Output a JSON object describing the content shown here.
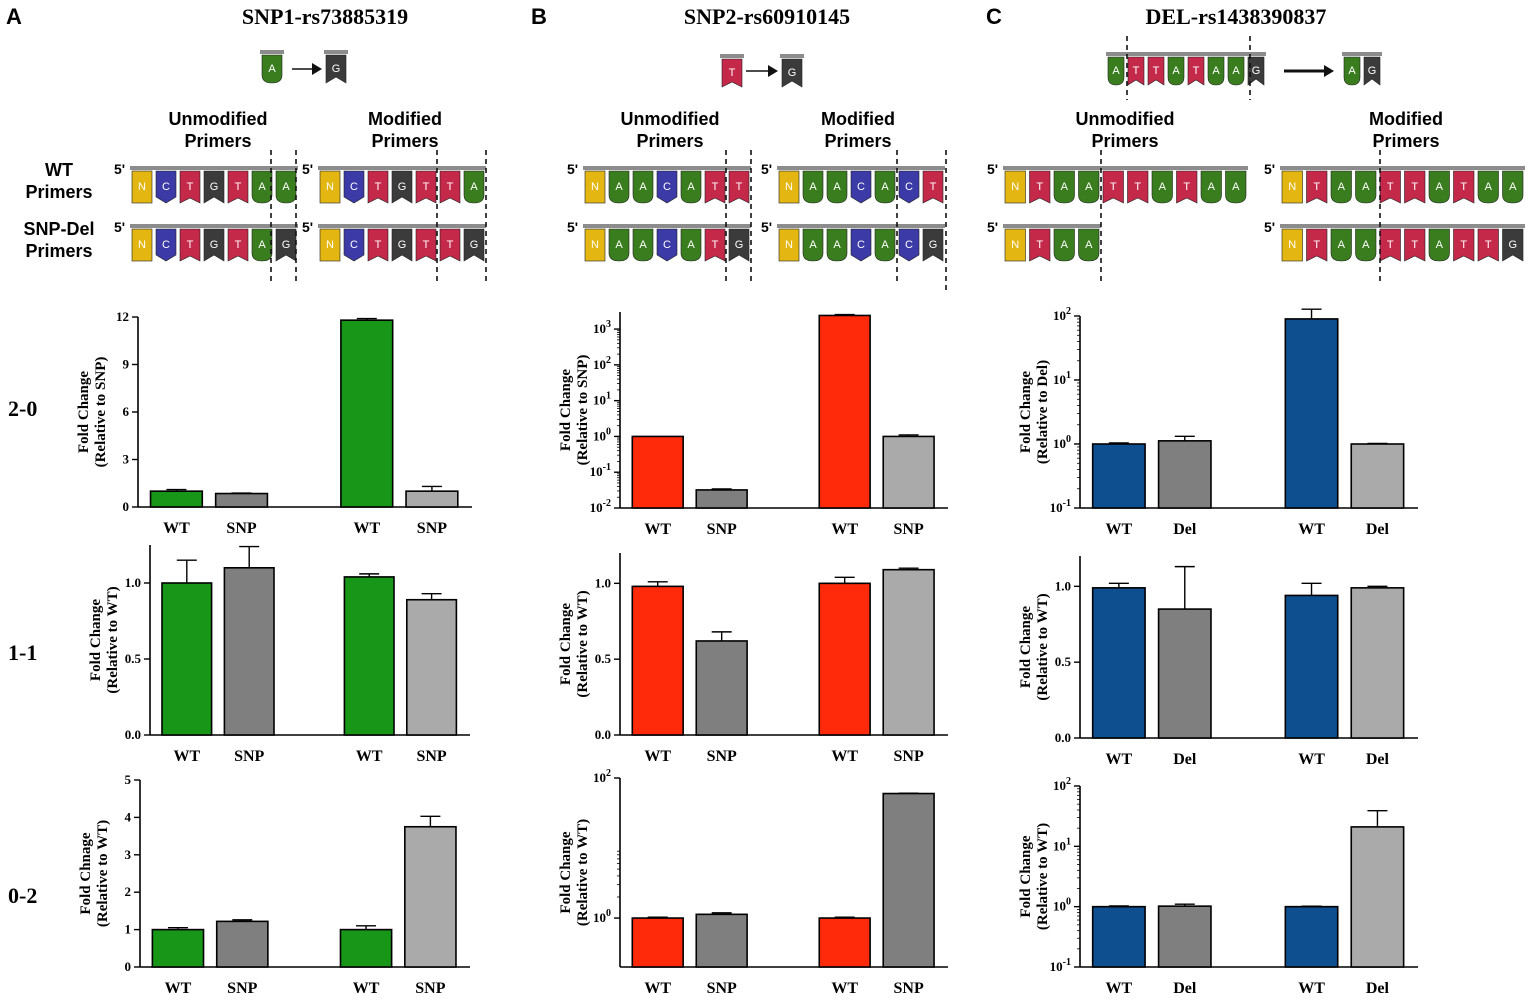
{
  "panels": [
    {
      "letter": "A",
      "title": "SNP1-rs73885319"
    },
    {
      "letter": "B",
      "title": "SNP2-rs60910145"
    },
    {
      "letter": "C",
      "title": "DEL-rs1438390837"
    }
  ],
  "row_labels": [
    "2-0",
    "1-1",
    "0-2"
  ],
  "primer_headers": {
    "unmodified": "Unmodified\nPrimers",
    "modified": "Modified\nPrimers"
  },
  "primer_side_labels": {
    "wt": "WT\nPrimers",
    "snp_del": "SNP-Del\nPrimers"
  },
  "five_prime": "5'",
  "colors": {
    "A": "#3a7d1e",
    "C": "#3b3aa6",
    "G": "#3b3b3b",
    "T": "#c4294a",
    "N": "#e3b612",
    "green": "#179617",
    "red": "#ff2a0a",
    "blue": "#0e4f8f",
    "gray_dark": "#7f7f7f",
    "gray_light": "#aaaaaa"
  },
  "sequences": {
    "A": {
      "mutation": {
        "from": [
          "A"
        ],
        "to": [
          "G"
        ]
      },
      "unmodified": {
        "wt": [
          "N",
          "C",
          "T",
          "G",
          "T",
          "A",
          "A"
        ],
        "mut": [
          "N",
          "C",
          "T",
          "G",
          "T",
          "A",
          "G"
        ]
      },
      "modified": {
        "wt": [
          "N",
          "C",
          "T",
          "G",
          "T",
          "T",
          "A"
        ],
        "mut": [
          "N",
          "C",
          "T",
          "G",
          "T",
          "T",
          "G"
        ]
      }
    },
    "B": {
      "mutation": {
        "from": [
          "T"
        ],
        "to": [
          "G"
        ]
      },
      "unmodified": {
        "wt": [
          "N",
          "A",
          "A",
          "C",
          "A",
          "T",
          "T"
        ],
        "mut": [
          "N",
          "A",
          "A",
          "C",
          "A",
          "T",
          "G"
        ]
      },
      "modified": {
        "wt": [
          "N",
          "A",
          "A",
          "C",
          "A",
          "C",
          "T"
        ],
        "mut": [
          "N",
          "A",
          "A",
          "C",
          "A",
          "C",
          "G"
        ]
      }
    },
    "C": {
      "mutation": {
        "from": [
          "A",
          "T",
          "T",
          "A",
          "T",
          "A",
          "A",
          "G"
        ],
        "to": [
          "A",
          "G"
        ]
      },
      "unmodified": {
        "wt": [
          "N",
          "T",
          "A",
          "A",
          "T",
          "T",
          "A",
          "T",
          "A",
          "A"
        ],
        "mut": [
          "N",
          "T",
          "A",
          "A"
        ]
      },
      "modified": {
        "wt": [
          "N",
          "T",
          "A",
          "A",
          "T",
          "T",
          "A",
          "T",
          "A",
          "A"
        ],
        "mut": [
          "N",
          "T",
          "A",
          "A",
          "T",
          "T",
          "A",
          "T",
          "T",
          "G"
        ]
      }
    }
  },
  "chart_data": [
    {
      "panel": "A",
      "row": "2-0",
      "type": "bar",
      "scale": "linear",
      "ylim": [
        0,
        12
      ],
      "yticks": [
        "0",
        "3",
        "6",
        "9",
        "12"
      ],
      "ylabel": [
        "Fold Change",
        "(Relative to SNP)"
      ],
      "categories": [
        "WT",
        "SNP",
        "WT",
        "SNP"
      ],
      "groups": [
        "Unmodified Primers",
        "Unmodified Primers",
        "Modified Primers",
        "Modified Primers"
      ],
      "values": [
        1.0,
        0.85,
        11.8,
        1.0
      ],
      "errors": [
        0.1,
        0.03,
        0.1,
        0.3
      ],
      "colors": [
        "#179617",
        "#7f7f7f",
        "#179617",
        "#aaaaaa"
      ]
    },
    {
      "panel": "A",
      "row": "1-1",
      "type": "bar",
      "scale": "linear",
      "ylim": [
        0,
        1.25
      ],
      "yticks": [
        "0.0",
        "0.5",
        "1.0"
      ],
      "ylabel": [
        "Fold Change",
        "(Relative to WT)"
      ],
      "categories": [
        "WT",
        "SNP",
        "WT",
        "SNP"
      ],
      "groups": [
        "Unmodified Primers",
        "Unmodified Primers",
        "Modified Primers",
        "Modified Primers"
      ],
      "values": [
        1.0,
        1.1,
        1.04,
        0.89
      ],
      "errors": [
        0.15,
        0.14,
        0.02,
        0.04
      ],
      "colors": [
        "#179617",
        "#7f7f7f",
        "#179617",
        "#aaaaaa"
      ]
    },
    {
      "panel": "A",
      "row": "0-2",
      "type": "bar",
      "scale": "linear",
      "ylim": [
        0,
        5
      ],
      "yticks": [
        "0",
        "1",
        "2",
        "3",
        "4",
        "5"
      ],
      "ylabel": [
        "Fold Chnage",
        "(Relative to WT)"
      ],
      "categories": [
        "WT",
        "SNP",
        "WT",
        "SNP"
      ],
      "groups": [
        "Unmodified Primers",
        "Unmodified Primers",
        "Modified Primers",
        "Modified Primers"
      ],
      "values": [
        1.0,
        1.22,
        1.0,
        3.75
      ],
      "errors": [
        0.05,
        0.04,
        0.1,
        0.28
      ],
      "colors": [
        "#179617",
        "#7f7f7f",
        "#179617",
        "#aaaaaa"
      ]
    },
    {
      "panel": "B",
      "row": "2-0",
      "type": "bar",
      "scale": "log",
      "ylim": [
        0.01,
        3000
      ],
      "yticks": [
        "10-2",
        "10-1",
        "100",
        "101",
        "102",
        "103"
      ],
      "ylabel": [
        "Fold Change",
        "(Relative to SNP)"
      ],
      "categories": [
        "WT",
        "SNP",
        "WT",
        "SNP"
      ],
      "groups": [
        "Unmodified Primers",
        "Unmodified Primers",
        "Modified Primers",
        "Modified Primers"
      ],
      "values": [
        1.0,
        0.032,
        2400,
        1.0
      ],
      "errors": [
        0,
        0.002,
        150,
        0.1
      ],
      "colors": [
        "#ff2a0a",
        "#7f7f7f",
        "#ff2a0a",
        "#aaaaaa"
      ]
    },
    {
      "panel": "B",
      "row": "1-1",
      "type": "bar",
      "scale": "linear",
      "ylim": [
        0,
        1.2
      ],
      "yticks": [
        "0.0",
        "0.5",
        "1.0"
      ],
      "ylabel": [
        "Fold Change",
        "(Relative to WT)"
      ],
      "categories": [
        "WT",
        "SNP",
        "WT",
        "SNP"
      ],
      "groups": [
        "Unmodified Primers",
        "Unmodified Primers",
        "Modified Primers",
        "Modified Primers"
      ],
      "values": [
        0.98,
        0.62,
        1.0,
        1.09
      ],
      "errors": [
        0.03,
        0.06,
        0.04,
        0.01
      ],
      "colors": [
        "#ff2a0a",
        "#7f7f7f",
        "#ff2a0a",
        "#aaaaaa"
      ]
    },
    {
      "panel": "B",
      "row": "0-2",
      "type": "bar",
      "scale": "log",
      "ylim": [
        0.2,
        100
      ],
      "yticks": [
        "100",
        "102"
      ],
      "ylabel": [
        "Fold Change",
        "(Relative to WT)"
      ],
      "categories": [
        "WT",
        "SNP",
        "WT",
        "SNP"
      ],
      "groups": [
        "Unmodified Primers",
        "Unmodified Primers",
        "Modified Primers",
        "Modified Primers"
      ],
      "values": [
        1.0,
        1.13,
        1.0,
        60
      ],
      "errors": [
        0.03,
        0.06,
        0.03,
        0.6
      ],
      "colors": [
        "#ff2a0a",
        "#7f7f7f",
        "#ff2a0a",
        "#7f7f7f"
      ]
    },
    {
      "panel": "C",
      "row": "2-0",
      "type": "bar",
      "scale": "log",
      "ylim": [
        0.1,
        100
      ],
      "yticks": [
        "10-1",
        "100",
        "101",
        "102"
      ],
      "ylabel": [
        "Fold Change",
        "(Relative to Del)"
      ],
      "categories": [
        "WT",
        "Del",
        "WT",
        "Del"
      ],
      "groups": [
        "Unmodified Primers",
        "Unmodified Primers",
        "Modified Primers",
        "Modified Primers"
      ],
      "values": [
        1.0,
        1.12,
        90,
        1.0
      ],
      "errors": [
        0.04,
        0.2,
        38,
        0.02
      ],
      "colors": [
        "#0e4f8f",
        "#7f7f7f",
        "#0e4f8f",
        "#aaaaaa"
      ]
    },
    {
      "panel": "C",
      "row": "1-1",
      "type": "bar",
      "scale": "linear",
      "ylim": [
        0,
        1.2
      ],
      "yticks": [
        "0.0",
        "0.5",
        "1.0"
      ],
      "ylabel": [
        "Fold Change",
        "(Relative to WT)"
      ],
      "categories": [
        "WT",
        "Del",
        "WT",
        "Del"
      ],
      "groups": [
        "Unmodified Primers",
        "Unmodified Primers",
        "Modified Primers",
        "Modified Primers"
      ],
      "values": [
        0.99,
        0.85,
        0.94,
        0.99
      ],
      "errors": [
        0.03,
        0.28,
        0.08,
        0.01
      ],
      "colors": [
        "#0e4f8f",
        "#7f7f7f",
        "#0e4f8f",
        "#aaaaaa"
      ]
    },
    {
      "panel": "C",
      "row": "0-2",
      "type": "bar",
      "scale": "log",
      "ylim": [
        0.1,
        100
      ],
      "yticks": [
        "10-1",
        "100",
        "101",
        "102"
      ],
      "ylabel": [
        "Fold Change",
        "(Relative to WT)"
      ],
      "categories": [
        "WT",
        "Del",
        "WT",
        "Del"
      ],
      "groups": [
        "Unmodified Primers",
        "Unmodified Primers",
        "Modified Primers",
        "Modified Primers"
      ],
      "values": [
        1.0,
        1.02,
        1.0,
        21
      ],
      "errors": [
        0.03,
        0.08,
        0.02,
        18
      ],
      "colors": [
        "#0e4f8f",
        "#7f7f7f",
        "#0e4f8f",
        "#aaaaaa"
      ]
    }
  ]
}
